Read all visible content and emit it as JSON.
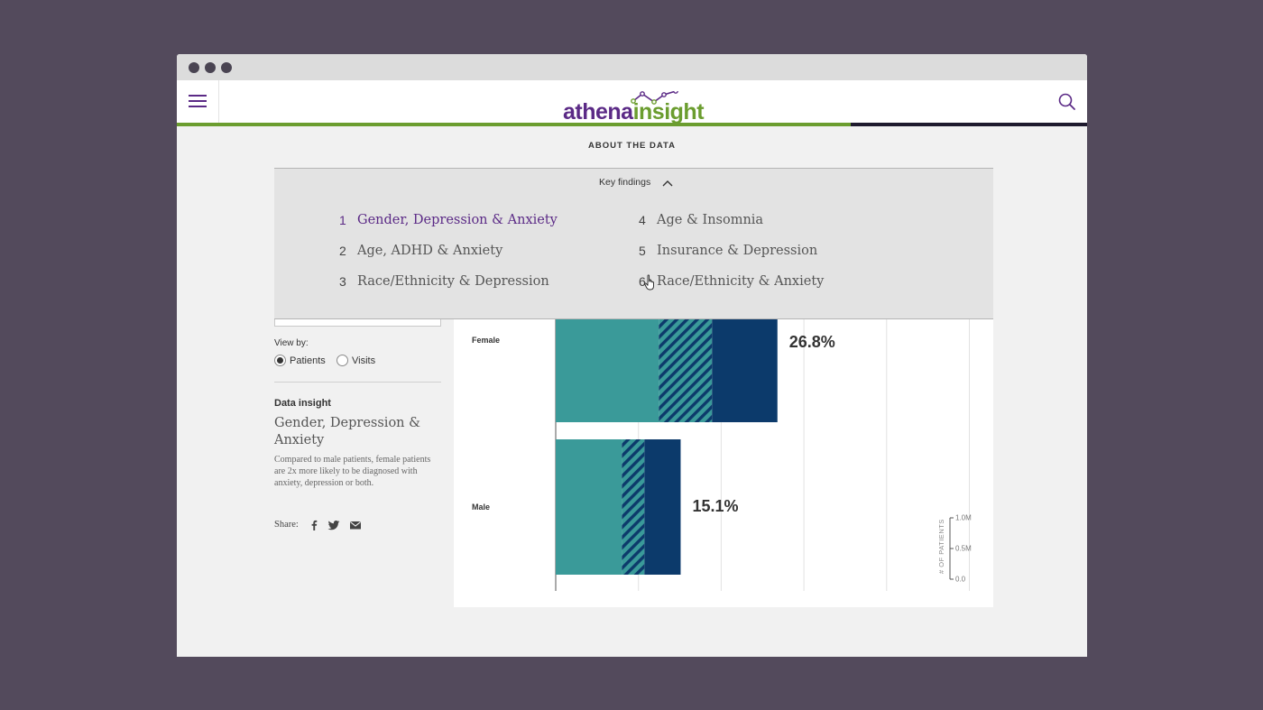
{
  "browser": {
    "dots": 3
  },
  "header": {
    "logo_part1": "athena",
    "logo_part2": "insight",
    "progress_percent": 74
  },
  "about": {
    "label": "ABOUT THE DATA"
  },
  "key_findings": {
    "toggle_label": "Key findings",
    "items": [
      {
        "num": "1",
        "label": "Gender, Depression & Anxiety"
      },
      {
        "num": "2",
        "label": "Age, ADHD & Anxiety"
      },
      {
        "num": "3",
        "label": "Race/Ethnicity & Depression"
      },
      {
        "num": "4",
        "label": "Age & Insomnia"
      },
      {
        "num": "5",
        "label": "Insurance & Depression"
      },
      {
        "num": "6",
        "label": "Race/Ethnicity & Anxiety"
      }
    ],
    "active_index": 0
  },
  "controls": {
    "view_by_label": "View by:",
    "options": [
      "Patients",
      "Visits"
    ],
    "selected": "Patients"
  },
  "insight": {
    "label": "Data insight",
    "title": "Gender, Depression & Anxiety",
    "description": "Compared to male patients, female patients are 2x more likely to be diagnosed with anxiety, depression or both.",
    "share_label": "Share:",
    "share_icons": [
      "facebook-icon",
      "twitter-icon",
      "email-icon"
    ]
  },
  "chart_data": {
    "type": "bar",
    "orientation": "horizontal",
    "categories": [
      "Female",
      "Male"
    ],
    "values": [
      26.8,
      15.1
    ],
    "value_labels": [
      "26.8%",
      "15.1%"
    ],
    "segments": [
      {
        "color": "#3a9a99",
        "pattern": "solid"
      },
      {
        "color": "#3a9a99",
        "pattern": "hatched"
      },
      {
        "color": "#0c3a6b",
        "pattern": "solid"
      }
    ],
    "segment_fractions": [
      [
        0.465,
        0.24,
        0.295
      ],
      [
        0.53,
        0.18,
        0.29
      ]
    ],
    "xlim": [
      0,
      50
    ],
    "grid": true,
    "size_legend": {
      "title": "# OF PATIENTS",
      "ticks": [
        "1.0M",
        "0.5M",
        "0.0"
      ]
    }
  },
  "colors": {
    "brand_purple": "#5b2a86",
    "brand_green": "#6b9d2f",
    "teal": "#3a9a99",
    "navy": "#0c3a6b"
  }
}
